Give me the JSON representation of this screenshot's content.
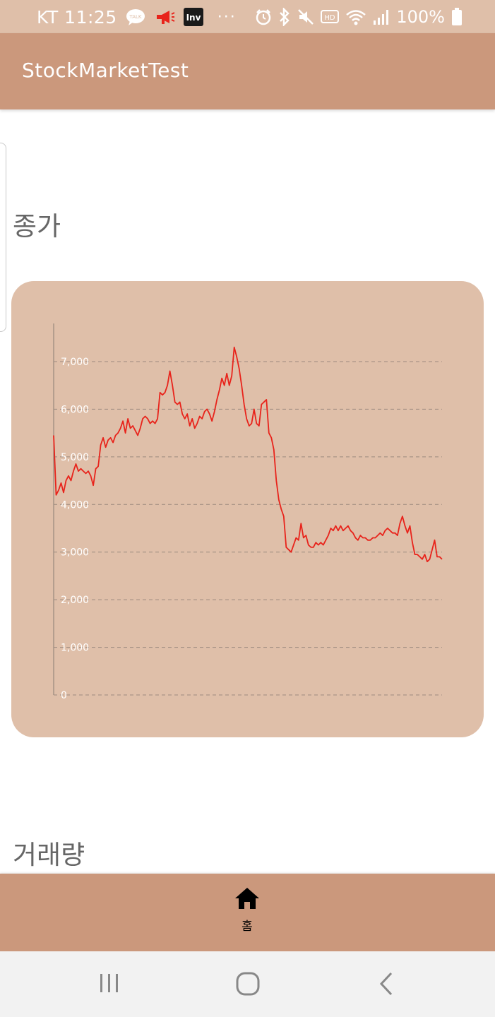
{
  "status_bar": {
    "carrier_time": "KT 11:25",
    "notifications": [
      {
        "icon": "kakaotalk-icon",
        "label": "TALK"
      },
      {
        "icon": "megaphone-icon"
      },
      {
        "icon": "investing-app-icon",
        "label": "Inv"
      },
      {
        "icon": "more-notifications-icon",
        "label": "···"
      }
    ],
    "system_icons": [
      "alarm-icon",
      "bluetooth-icon",
      "mute-icon",
      "hd-voice-icon",
      "wifi-icon",
      "signal-icon"
    ],
    "hd_label": "HD",
    "battery_text": "100%"
  },
  "app_bar": {
    "title": "StockMarketTest"
  },
  "sections": {
    "close_title": "종가",
    "volume_title": "거래량"
  },
  "chart_data": {
    "type": "line",
    "y_ticks": [
      "0",
      "1,000",
      "2,000",
      "3,000",
      "4,000",
      "5,000",
      "6,000",
      "7,000"
    ],
    "ylim": [
      0,
      7800
    ],
    "grid": true,
    "grid_style": "dashed",
    "series_color": "#e8231b",
    "series": [
      {
        "values": [
          5450,
          4200,
          4300,
          4450,
          4250,
          4500,
          4600,
          4500,
          4700,
          4850,
          4700,
          4750,
          4700,
          4650,
          4700,
          4600,
          4400,
          4750,
          4800,
          5250,
          5400,
          5200,
          5350,
          5400,
          5300,
          5450,
          5500,
          5600,
          5750,
          5500,
          5800,
          5600,
          5650,
          5550,
          5450,
          5600,
          5800,
          5850,
          5800,
          5700,
          5750,
          5700,
          5800,
          6350,
          6300,
          6350,
          6500,
          6800,
          6500,
          6150,
          6100,
          6150,
          5900,
          5800,
          5900,
          5650,
          5800,
          5600,
          5700,
          5850,
          5800,
          5950,
          6000,
          5900,
          5750,
          5950,
          6200,
          6400,
          6650,
          6500,
          6750,
          6500,
          6700,
          7300,
          7100,
          6850,
          6500,
          6100,
          5800,
          5650,
          5700,
          6000,
          5700,
          5650,
          6100,
          6150,
          6200,
          5500,
          5400,
          5150,
          4500,
          4100,
          3900,
          3750,
          3100,
          3050,
          3000,
          3150,
          3300,
          3250,
          3600,
          3300,
          3350,
          3150,
          3100,
          3100,
          3200,
          3150,
          3200,
          3150,
          3250,
          3350,
          3500,
          3450,
          3550,
          3450,
          3550,
          3450,
          3500,
          3550,
          3450,
          3400,
          3300,
          3250,
          3350,
          3300,
          3300,
          3250,
          3250,
          3300,
          3300,
          3350,
          3400,
          3350,
          3450,
          3500,
          3450,
          3400,
          3400,
          3350,
          3600,
          3750,
          3550,
          3400,
          3550,
          3200,
          2950,
          2950,
          2900,
          2850,
          2950,
          2800,
          2850,
          3050,
          3250,
          2900,
          2900,
          2850
        ],
        "color": "#e8231b"
      }
    ]
  },
  "bottom_nav": {
    "items": [
      {
        "label": "홈",
        "icon": "home-icon",
        "active": true
      }
    ]
  },
  "system_nav": {
    "buttons": [
      "recent-apps-button",
      "home-button",
      "back-button"
    ]
  }
}
